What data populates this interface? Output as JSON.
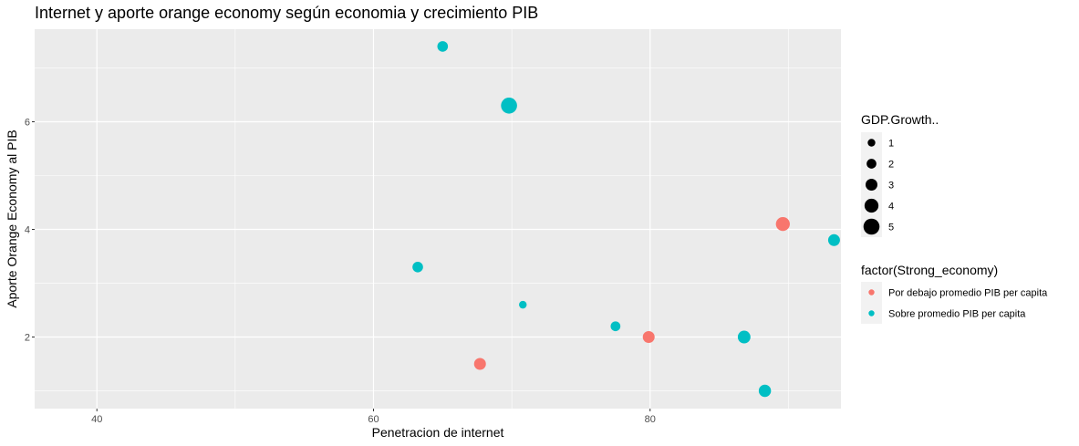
{
  "chart_data": {
    "type": "scatter",
    "title": "Internet y aporte orange economy según economia y crecimiento PIB",
    "xlabel": "Penetracion de internet",
    "ylabel": "Aporte Orange Economy al PIB",
    "xlim": [
      35.5,
      93.8
    ],
    "ylim": [
      0.67,
      7.72
    ],
    "x_ticks": [
      40,
      60,
      80
    ],
    "x_tick_labels": [
      "40",
      "60",
      "80"
    ],
    "y_ticks": [
      2,
      4,
      6
    ],
    "y_tick_labels": [
      "2",
      "4",
      "6"
    ],
    "grid": true,
    "legend_position": "right",
    "size_legend": {
      "title": "GDP.Growth..",
      "values": [
        1,
        2,
        3,
        4,
        5
      ],
      "labels": [
        "1",
        "2",
        "3",
        "4",
        "5"
      ]
    },
    "color_legend": {
      "title": "factor(Strong_economy)",
      "entries": [
        {
          "label": "Por debajo promedio PIB per capita",
          "color": "#F8766D"
        },
        {
          "label": "Sobre promedio PIB per capita",
          "color": "#00BFC4"
        }
      ]
    },
    "series": [
      {
        "name": "Por debajo promedio PIB per capita",
        "color": "#F8766D",
        "points": [
          {
            "x": 89.6,
            "y": 4.1,
            "size": 4.0
          },
          {
            "x": 79.9,
            "y": 2.0,
            "size": 3.0
          },
          {
            "x": 67.7,
            "y": 1.5,
            "size": 3.0
          }
        ]
      },
      {
        "name": "Sobre promedio PIB per capita",
        "color": "#00BFC4",
        "points": [
          {
            "x": 65.0,
            "y": 7.4,
            "size": 2.4
          },
          {
            "x": 69.8,
            "y": 6.3,
            "size": 5.0
          },
          {
            "x": 63.2,
            "y": 3.3,
            "size": 2.4
          },
          {
            "x": 70.8,
            "y": 2.6,
            "size": 1.0
          },
          {
            "x": 77.5,
            "y": 2.2,
            "size": 2.0
          },
          {
            "x": 86.8,
            "y": 2.0,
            "size": 3.4
          },
          {
            "x": 93.3,
            "y": 3.8,
            "size": 3.0
          },
          {
            "x": 88.3,
            "y": 1.0,
            "size": 3.2
          }
        ]
      }
    ]
  }
}
